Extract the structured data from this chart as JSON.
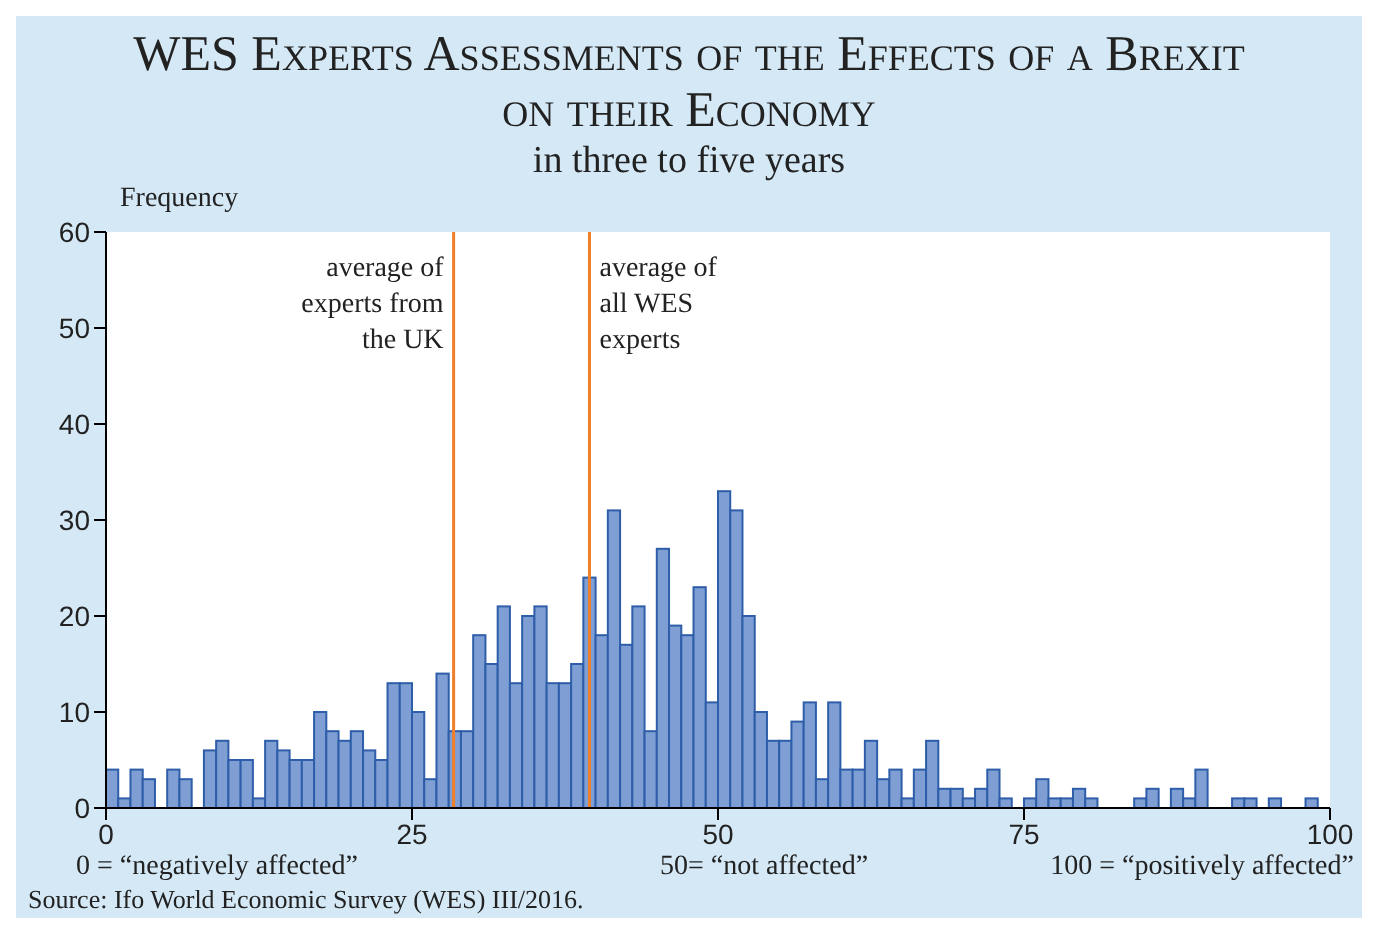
{
  "chart_data": {
    "type": "histogram",
    "title": "WES Experts Assessments of the Effects of a Brexit on their Economy",
    "subtitle": "in three to five years",
    "ylabel": "Frequency",
    "bins": [
      0,
      1,
      2,
      3,
      4,
      5,
      6,
      7,
      8,
      9,
      10,
      11,
      12,
      13,
      14,
      15,
      16,
      17,
      18,
      19,
      20,
      21,
      22,
      23,
      24,
      25,
      26,
      27,
      28,
      29,
      30,
      31,
      32,
      33,
      34,
      35,
      36,
      37,
      38,
      39,
      40,
      41,
      42,
      43,
      44,
      45,
      46,
      47,
      48,
      49,
      50,
      51,
      52,
      53,
      54,
      55,
      56,
      57,
      58,
      59,
      60,
      61,
      62,
      63,
      64,
      65,
      66,
      67,
      68,
      69,
      70,
      71,
      72,
      73,
      74,
      75,
      76,
      77,
      78,
      79,
      80,
      81,
      82,
      83,
      84,
      85,
      86,
      87,
      88,
      89,
      90,
      91,
      92,
      93,
      94,
      95,
      96,
      97,
      98,
      99,
      100
    ],
    "values": [
      4,
      1,
      4,
      3,
      0,
      4,
      3,
      0,
      6,
      7,
      5,
      5,
      1,
      7,
      6,
      5,
      5,
      10,
      8,
      7,
      8,
      6,
      5,
      13,
      13,
      10,
      3,
      14,
      8,
      8,
      18,
      15,
      21,
      13,
      20,
      21,
      13,
      13,
      15,
      24,
      18,
      31,
      17,
      21,
      8,
      27,
      19,
      18,
      23,
      11,
      33,
      31,
      20,
      10,
      7,
      7,
      9,
      11,
      3,
      11,
      4,
      4,
      7,
      3,
      4,
      1,
      4,
      7,
      2,
      2,
      1,
      2,
      4,
      1,
      0,
      1,
      3,
      1,
      1,
      2,
      1,
      0,
      0,
      0,
      1,
      2,
      0,
      2,
      1,
      4,
      0,
      0,
      1,
      1,
      0,
      1,
      0,
      0,
      1,
      0
    ],
    "color": "#7f9fd4",
    "xlim": [
      0,
      100
    ],
    "xticks": [
      0,
      25,
      50,
      75,
      100
    ],
    "ylim": [
      0,
      60
    ],
    "yticks": [
      0,
      10,
      20,
      30,
      40,
      50,
      60
    ],
    "grid": false,
    "ref_lines": [
      {
        "axis": "x",
        "value": 28.4,
        "label": "average of experts from the UK",
        "color": "#f07f2a"
      },
      {
        "axis": "x",
        "value": 39.5,
        "label": "average of all WES experts",
        "color": "#f07f2a"
      }
    ],
    "annotations": [
      "0 = “negatively affected”",
      "50= “not affected”",
      "100 = “positively affected”",
      "Source: Ifo World Economic Survey (WES) III/2016."
    ]
  }
}
